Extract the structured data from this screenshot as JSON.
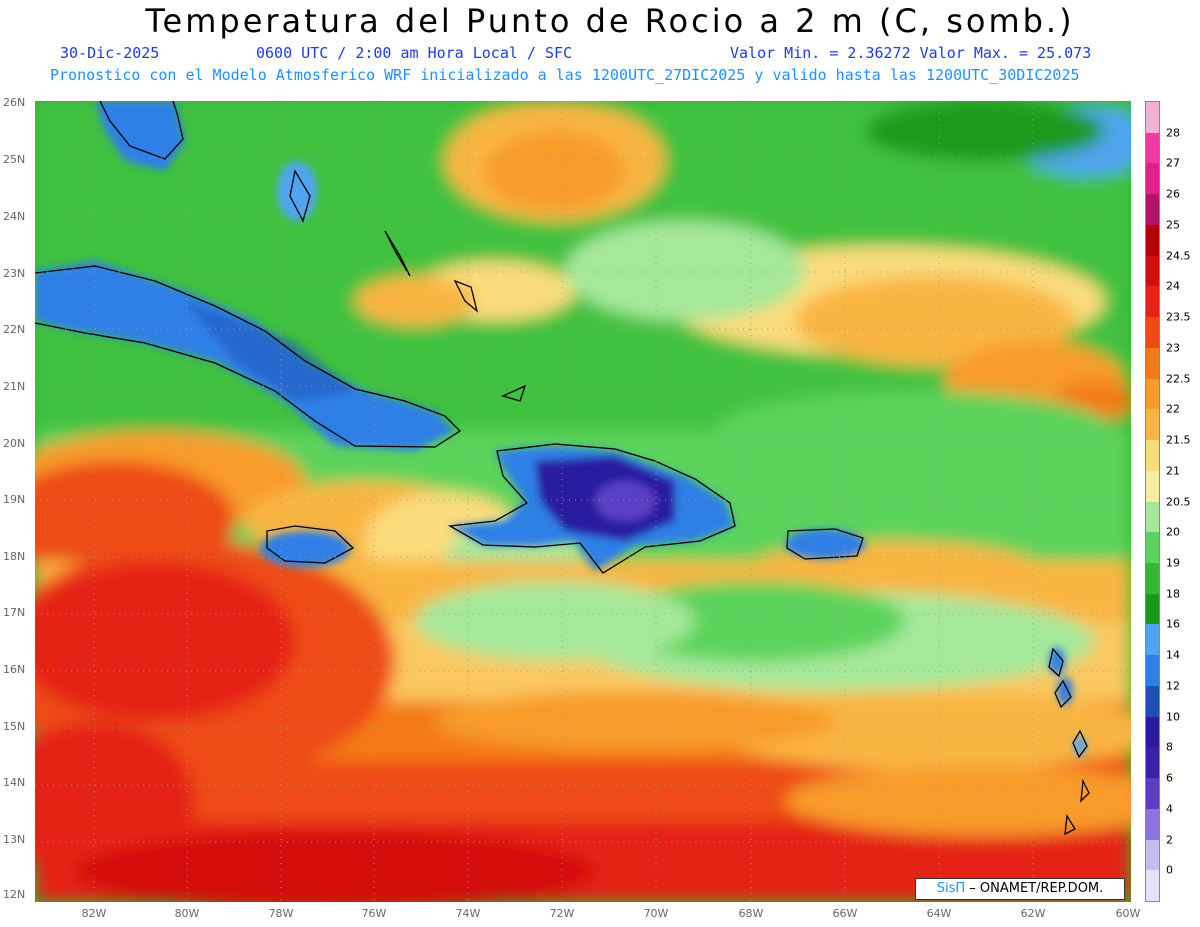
{
  "header": {
    "title": "Temperatura del Punto de Rocio a 2 m (C, somb.)",
    "date": "30-Dic-2025",
    "time": "0600 UTC / 2:00 am Hora Local / SFC",
    "minmax": "Valor Min. = 2.36272  Valor Max. = 25.073",
    "model_note": "Pronostico con el Modelo Atmosferico WRF inicializado a las 1200UTC_27DIC2025 y valido hasta las  1200UTC_30DIC2025"
  },
  "map": {
    "lat_labels": [
      "26N",
      "25N",
      "24N",
      "23N",
      "22N",
      "21N",
      "20N",
      "19N",
      "18N",
      "17N",
      "16N",
      "15N",
      "14N",
      "13N",
      "12N"
    ],
    "lon_labels": [
      "82W",
      "80W",
      "78W",
      "76W",
      "74W",
      "72W",
      "70W",
      "68W",
      "66W",
      "64W",
      "62W",
      "60W"
    ],
    "region": "Caribbean - Hispaniola, Cuba, Jamaica, Puerto Rico"
  },
  "colorbar": {
    "labels": [
      "28",
      "27",
      "26",
      "25",
      "24.5",
      "24",
      "23.5",
      "23",
      "22.5",
      "22",
      "21.5",
      "21",
      "20.5",
      "20",
      "19",
      "18",
      "16",
      "14",
      "12",
      "10",
      "8",
      "6",
      "4",
      "2",
      "0"
    ],
    "colors": [
      "#f6b0d6",
      "#ef3aa8",
      "#e11f8e",
      "#b4126a",
      "#b30000",
      "#d40f0f",
      "#e52213",
      "#ee4b14",
      "#f57a18",
      "#f89b2a",
      "#f9b543",
      "#fbdc7b",
      "#f6eea0",
      "#a6e89a",
      "#5cd35c",
      "#34b834",
      "#1a9a1a",
      "#50a4f0",
      "#2f7fe6",
      "#1e4fb4",
      "#2a1aa0",
      "#3a1fa8",
      "#5a3fc4",
      "#8c74e0",
      "#c6bcf2",
      "#e6e2fa"
    ]
  },
  "credit": {
    "sis": "SisΠ",
    "org": " – ONAMET/REP.DOM."
  }
}
